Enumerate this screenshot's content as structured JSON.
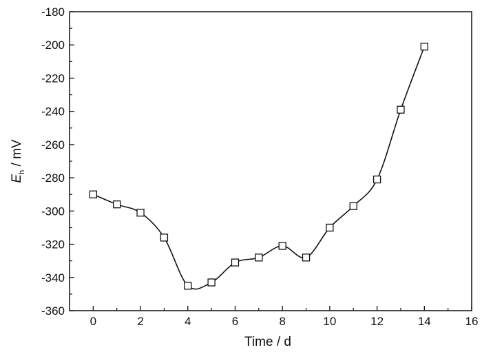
{
  "chart_data": {
    "type": "line",
    "xlabel": "Time / d",
    "ylabel": {
      "symbol": "E",
      "subscript": "h",
      "unit": " / mV"
    },
    "xlim": [
      -1,
      16
    ],
    "ylim": [
      -360,
      -180
    ],
    "xticks": [
      0,
      2,
      4,
      6,
      8,
      10,
      12,
      14,
      16
    ],
    "yticks": [
      -360,
      -340,
      -320,
      -300,
      -280,
      -260,
      -240,
      -220,
      -200,
      -180
    ],
    "series": [
      {
        "marker": "square-open",
        "color": "#111111",
        "smooth_line": true,
        "points": [
          {
            "x": 0,
            "y": -290
          },
          {
            "x": 1,
            "y": -296
          },
          {
            "x": 2,
            "y": -301
          },
          {
            "x": 3,
            "y": -316
          },
          {
            "x": 4,
            "y": -345
          },
          {
            "x": 5,
            "y": -343
          },
          {
            "x": 6,
            "y": -331
          },
          {
            "x": 7,
            "y": -328
          },
          {
            "x": 8,
            "y": -321
          },
          {
            "x": 9,
            "y": -328
          },
          {
            "x": 10,
            "y": -310
          },
          {
            "x": 11,
            "y": -297
          },
          {
            "x": 12,
            "y": -281
          },
          {
            "x": 13,
            "y": -239
          },
          {
            "x": 14,
            "y": -201
          }
        ]
      }
    ]
  }
}
